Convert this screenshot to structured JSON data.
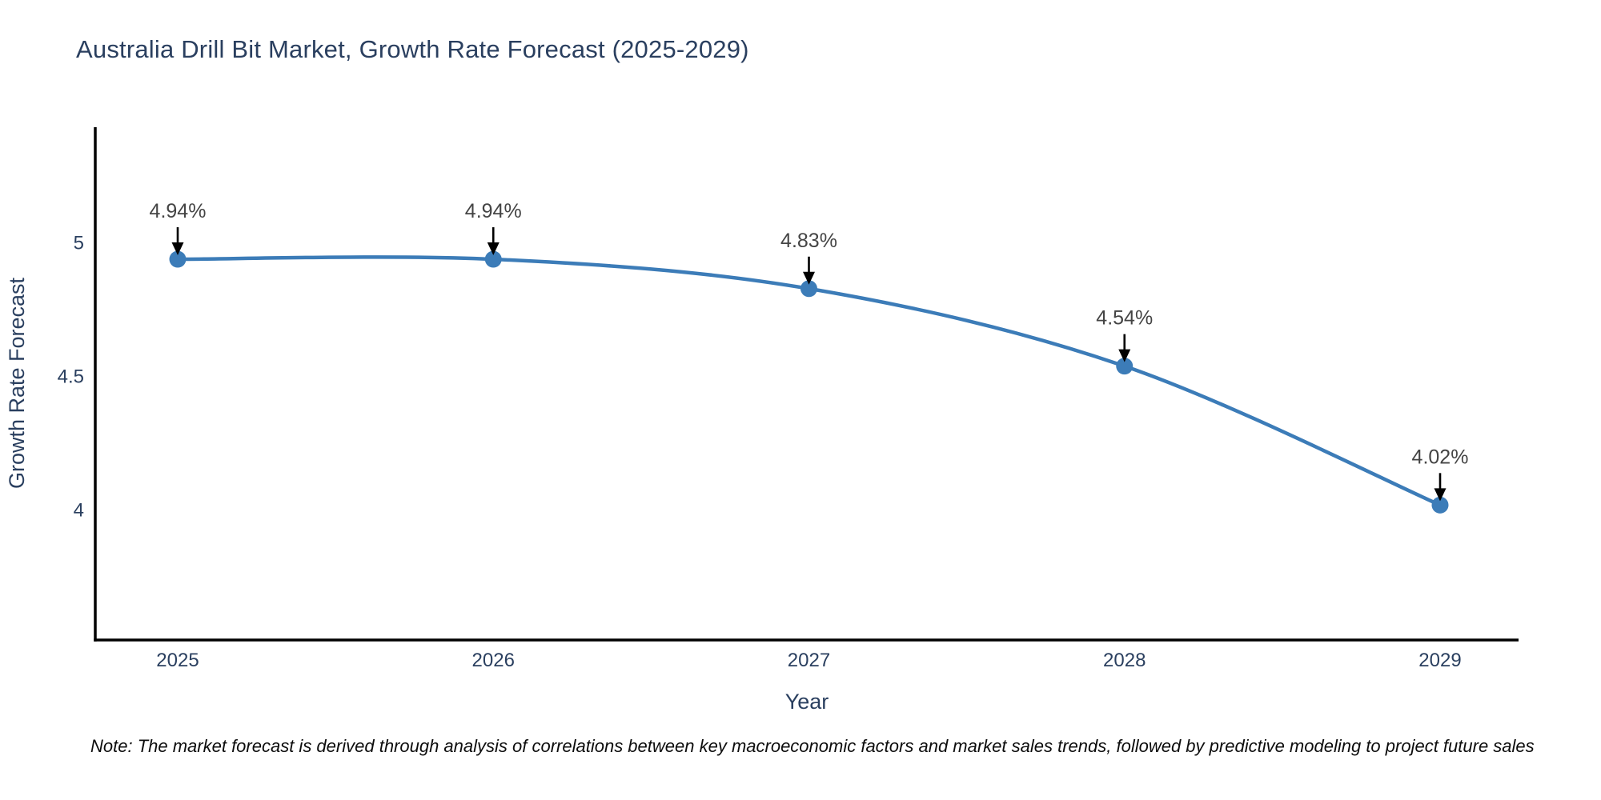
{
  "header": {
    "title": "Australia Drill Bit Market, Growth Rate Forecast (2025-2029)"
  },
  "footnote": {
    "text": "Note: The market forecast is derived through analysis of correlations between key macroeconomic factors and market sales trends, followed by predictive modeling to project future sales"
  },
  "colors": {
    "line": "#3c7cb8",
    "marker": "#3c7cb8",
    "title": "#2a3f5f",
    "tick": "#2a3f5f",
    "axis_label": "#2a3f5f",
    "annotation_text": "#444444",
    "arrow": "#000000",
    "axis_line": "#000000",
    "background": "#ffffff"
  },
  "chart_data": {
    "type": "line",
    "title": "Australia Drill Bit Market, Growth Rate Forecast (2025-2029)",
    "xlabel": "Year",
    "ylabel": "Growth Rate Forecast",
    "x": [
      2025,
      2026,
      2027,
      2028,
      2029
    ],
    "values": [
      4.94,
      4.94,
      4.83,
      4.54,
      4.02
    ],
    "point_labels": [
      "4.94%",
      "4.94%",
      "4.83%",
      "4.54%",
      "4.02%"
    ],
    "xtick_labels": [
      "2025",
      "2026",
      "2027",
      "2028",
      "2029"
    ],
    "yticks": [
      5,
      4.5,
      4
    ],
    "ytick_labels": [
      "5",
      "4.5",
      "4"
    ],
    "yrange": [
      3.52,
      5.44
    ],
    "grid": false,
    "legend_position": "none",
    "line_shape": "spline",
    "marker": "circle",
    "annotation_style": "label-with-down-arrow"
  }
}
